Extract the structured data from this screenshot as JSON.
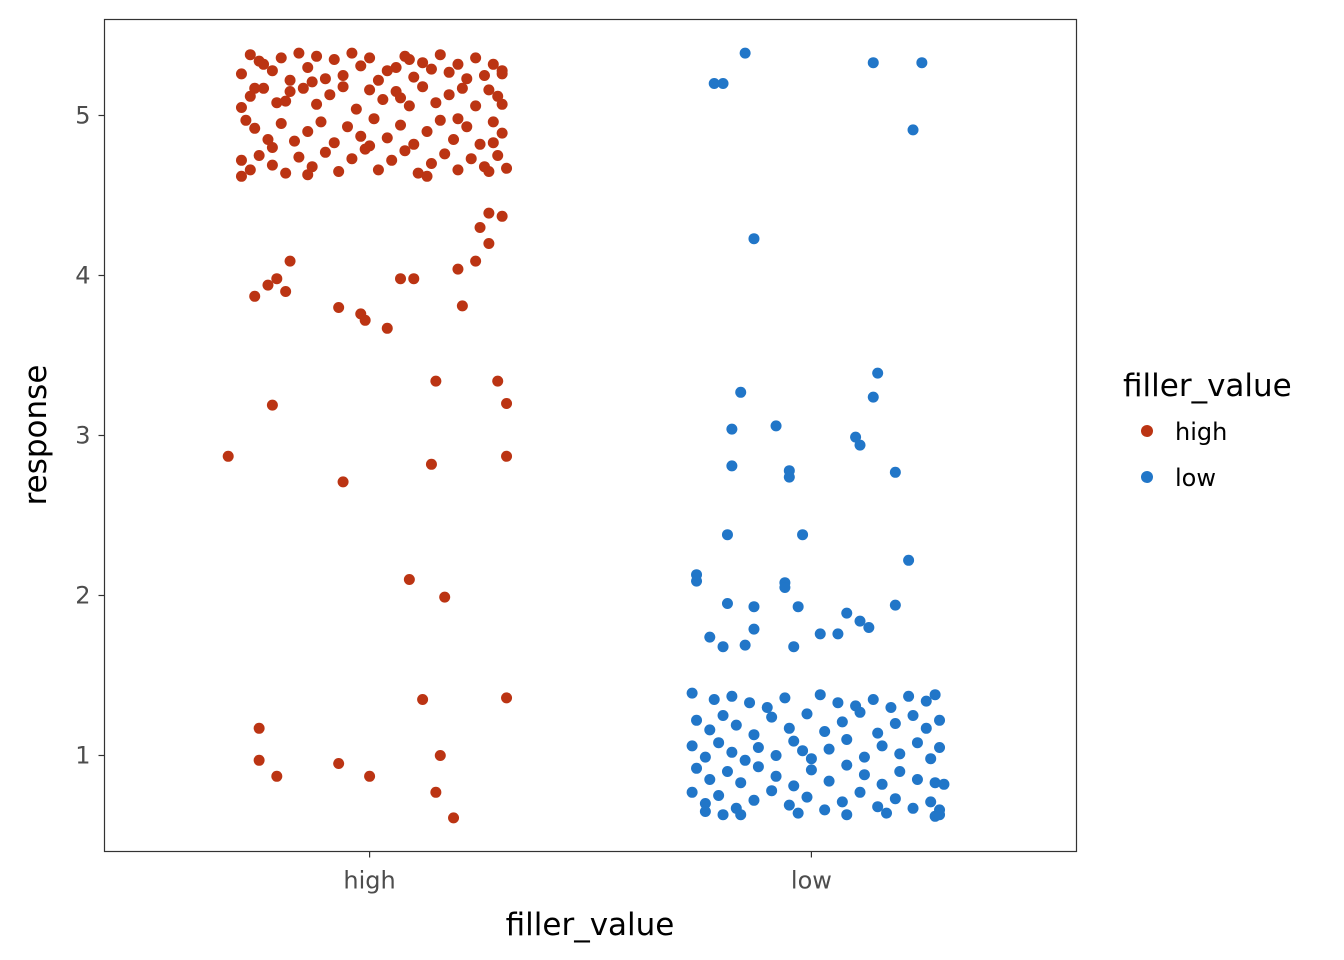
{
  "chart_data": {
    "type": "scatter",
    "xlabel": "filler_value",
    "ylabel": "response",
    "categories": [
      "high",
      "low"
    ],
    "ylim": [
      0.4,
      5.6
    ],
    "y_ticks": [
      "1",
      "2",
      "3",
      "4",
      "5"
    ],
    "grid": false,
    "legend": {
      "title": "filler_value",
      "position": "right",
      "entries": [
        "high",
        "low"
      ]
    },
    "colors": {
      "high": "#bb3413",
      "low": "#2176c8"
    },
    "series": [
      {
        "name": "high",
        "category": "high",
        "points": [
          [
            -0.29,
            5.26
          ],
          [
            -0.27,
            5.38
          ],
          [
            -0.26,
            5.17
          ],
          [
            -0.24,
            5.32
          ],
          [
            -0.22,
            5.28
          ],
          [
            -0.2,
            5.36
          ],
          [
            -0.18,
            5.22
          ],
          [
            -0.16,
            5.39
          ],
          [
            -0.14,
            5.3
          ],
          [
            -0.12,
            5.37
          ],
          [
            -0.1,
            5.23
          ],
          [
            -0.08,
            5.35
          ],
          [
            -0.06,
            5.25
          ],
          [
            -0.04,
            5.39
          ],
          [
            -0.02,
            5.31
          ],
          [
            0.0,
            5.36
          ],
          [
            0.02,
            5.22
          ],
          [
            0.04,
            5.28
          ],
          [
            0.06,
            5.3
          ],
          [
            0.08,
            5.37
          ],
          [
            0.1,
            5.24
          ],
          [
            0.12,
            5.33
          ],
          [
            0.14,
            5.29
          ],
          [
            0.16,
            5.38
          ],
          [
            0.18,
            5.27
          ],
          [
            0.2,
            5.32
          ],
          [
            0.22,
            5.23
          ],
          [
            0.24,
            5.36
          ],
          [
            0.26,
            5.25
          ],
          [
            0.28,
            5.32
          ],
          [
            0.3,
            5.28
          ],
          [
            0.3,
            5.26
          ],
          [
            -0.25,
            5.34
          ],
          [
            -0.13,
            5.21
          ],
          [
            0.09,
            5.35
          ],
          [
            -0.29,
            5.05
          ],
          [
            -0.27,
            5.12
          ],
          [
            -0.24,
            5.17
          ],
          [
            -0.21,
            5.08
          ],
          [
            -0.18,
            5.15
          ],
          [
            -0.15,
            5.17
          ],
          [
            -0.12,
            5.07
          ],
          [
            -0.09,
            5.13
          ],
          [
            -0.06,
            5.18
          ],
          [
            -0.03,
            5.04
          ],
          [
            0.0,
            5.16
          ],
          [
            0.03,
            5.1
          ],
          [
            0.06,
            5.15
          ],
          [
            0.09,
            5.06
          ],
          [
            0.12,
            5.18
          ],
          [
            0.15,
            5.08
          ],
          [
            0.18,
            5.13
          ],
          [
            0.21,
            5.17
          ],
          [
            0.24,
            5.06
          ],
          [
            0.27,
            5.16
          ],
          [
            0.3,
            5.07
          ],
          [
            0.29,
            5.12
          ],
          [
            -0.19,
            5.09
          ],
          [
            0.07,
            5.11
          ],
          [
            -0.28,
            4.97
          ],
          [
            -0.26,
            4.92
          ],
          [
            -0.23,
            4.85
          ],
          [
            -0.2,
            4.95
          ],
          [
            -0.17,
            4.84
          ],
          [
            -0.14,
            4.9
          ],
          [
            -0.11,
            4.96
          ],
          [
            -0.08,
            4.83
          ],
          [
            -0.05,
            4.93
          ],
          [
            -0.02,
            4.87
          ],
          [
            0.01,
            4.98
          ],
          [
            0.04,
            4.86
          ],
          [
            0.07,
            4.94
          ],
          [
            0.1,
            4.82
          ],
          [
            0.13,
            4.9
          ],
          [
            0.16,
            4.97
          ],
          [
            0.19,
            4.85
          ],
          [
            0.22,
            4.93
          ],
          [
            0.25,
            4.82
          ],
          [
            0.28,
            4.96
          ],
          [
            0.3,
            4.89
          ],
          [
            0.28,
            4.83
          ],
          [
            -0.22,
            4.8
          ],
          [
            0.0,
            4.81
          ],
          [
            0.2,
            4.98
          ],
          [
            -0.29,
            4.72
          ],
          [
            -0.27,
            4.66
          ],
          [
            -0.25,
            4.75
          ],
          [
            -0.22,
            4.69
          ],
          [
            -0.19,
            4.64
          ],
          [
            -0.16,
            4.74
          ],
          [
            -0.13,
            4.68
          ],
          [
            -0.1,
            4.77
          ],
          [
            -0.07,
            4.65
          ],
          [
            -0.04,
            4.73
          ],
          [
            -0.01,
            4.79
          ],
          [
            0.02,
            4.66
          ],
          [
            0.05,
            4.72
          ],
          [
            0.08,
            4.78
          ],
          [
            0.11,
            4.64
          ],
          [
            0.14,
            4.7
          ],
          [
            0.17,
            4.76
          ],
          [
            0.2,
            4.66
          ],
          [
            0.23,
            4.73
          ],
          [
            0.26,
            4.68
          ],
          [
            0.29,
            4.75
          ],
          [
            0.31,
            4.67
          ],
          [
            -0.29,
            4.62
          ],
          [
            -0.14,
            4.63
          ],
          [
            0.13,
            4.62
          ],
          [
            0.27,
            4.65
          ],
          [
            0.27,
            4.39
          ],
          [
            0.3,
            4.37
          ],
          [
            0.25,
            4.3
          ],
          [
            0.27,
            4.2
          ],
          [
            0.24,
            4.09
          ],
          [
            0.2,
            4.04
          ],
          [
            -0.18,
            4.09
          ],
          [
            -0.21,
            3.98
          ],
          [
            -0.23,
            3.94
          ],
          [
            -0.19,
            3.9
          ],
          [
            -0.26,
            3.87
          ],
          [
            0.07,
            3.98
          ],
          [
            0.1,
            3.98
          ],
          [
            -0.07,
            3.8
          ],
          [
            -0.02,
            3.76
          ],
          [
            -0.01,
            3.72
          ],
          [
            0.04,
            3.67
          ],
          [
            0.21,
            3.81
          ],
          [
            0.15,
            3.34
          ],
          [
            0.29,
            3.34
          ],
          [
            0.31,
            3.2
          ],
          [
            -0.22,
            3.19
          ],
          [
            -0.32,
            2.87
          ],
          [
            0.31,
            2.87
          ],
          [
            0.14,
            2.82
          ],
          [
            -0.06,
            2.71
          ],
          [
            0.09,
            2.1
          ],
          [
            0.17,
            1.99
          ],
          [
            0.12,
            1.35
          ],
          [
            0.31,
            1.36
          ],
          [
            -0.25,
            1.17
          ],
          [
            0.16,
            1.0
          ],
          [
            -0.25,
            0.97
          ],
          [
            -0.07,
            0.95
          ],
          [
            -0.21,
            0.87
          ],
          [
            0.0,
            0.87
          ],
          [
            0.15,
            0.77
          ],
          [
            0.19,
            0.61
          ]
        ]
      },
      {
        "name": "low",
        "category": "low",
        "points": [
          [
            -0.15,
            5.39
          ],
          [
            0.14,
            5.33
          ],
          [
            0.25,
            5.33
          ],
          [
            -0.2,
            5.2
          ],
          [
            -0.22,
            5.2
          ],
          [
            0.23,
            4.91
          ],
          [
            -0.13,
            4.23
          ],
          [
            0.15,
            3.39
          ],
          [
            -0.16,
            3.27
          ],
          [
            0.14,
            3.24
          ],
          [
            -0.08,
            3.06
          ],
          [
            -0.18,
            3.04
          ],
          [
            0.1,
            2.99
          ],
          [
            0.11,
            2.94
          ],
          [
            -0.18,
            2.81
          ],
          [
            -0.05,
            2.78
          ],
          [
            0.19,
            2.77
          ],
          [
            -0.05,
            2.74
          ],
          [
            -0.19,
            2.38
          ],
          [
            -0.02,
            2.38
          ],
          [
            0.22,
            2.22
          ],
          [
            -0.26,
            2.13
          ],
          [
            -0.26,
            2.09
          ],
          [
            -0.06,
            2.08
          ],
          [
            -0.06,
            2.05
          ],
          [
            -0.19,
            1.95
          ],
          [
            -0.13,
            1.93
          ],
          [
            -0.03,
            1.93
          ],
          [
            0.19,
            1.94
          ],
          [
            0.08,
            1.89
          ],
          [
            0.11,
            1.84
          ],
          [
            -0.13,
            1.79
          ],
          [
            0.13,
            1.8
          ],
          [
            0.02,
            1.76
          ],
          [
            0.06,
            1.76
          ],
          [
            -0.23,
            1.74
          ],
          [
            -0.2,
            1.68
          ],
          [
            -0.15,
            1.69
          ],
          [
            -0.04,
            1.68
          ],
          [
            -0.27,
            1.39
          ],
          [
            -0.22,
            1.35
          ],
          [
            -0.18,
            1.37
          ],
          [
            -0.14,
            1.33
          ],
          [
            -0.1,
            1.3
          ],
          [
            -0.06,
            1.36
          ],
          [
            0.02,
            1.38
          ],
          [
            0.06,
            1.33
          ],
          [
            0.1,
            1.31
          ],
          [
            0.14,
            1.35
          ],
          [
            0.18,
            1.3
          ],
          [
            0.22,
            1.37
          ],
          [
            0.26,
            1.34
          ],
          [
            0.28,
            1.38
          ],
          [
            -0.26,
            1.22
          ],
          [
            -0.23,
            1.16
          ],
          [
            -0.2,
            1.25
          ],
          [
            -0.17,
            1.19
          ],
          [
            -0.13,
            1.13
          ],
          [
            -0.09,
            1.24
          ],
          [
            -0.05,
            1.17
          ],
          [
            -0.01,
            1.26
          ],
          [
            0.03,
            1.15
          ],
          [
            0.07,
            1.21
          ],
          [
            0.11,
            1.27
          ],
          [
            0.15,
            1.14
          ],
          [
            0.19,
            1.2
          ],
          [
            0.23,
            1.25
          ],
          [
            0.26,
            1.17
          ],
          [
            0.29,
            1.22
          ],
          [
            -0.27,
            1.06
          ],
          [
            -0.24,
            0.99
          ],
          [
            -0.21,
            1.08
          ],
          [
            -0.18,
            1.02
          ],
          [
            -0.15,
            0.97
          ],
          [
            -0.12,
            1.05
          ],
          [
            -0.08,
            1.0
          ],
          [
            -0.04,
            1.09
          ],
          [
            0.0,
            0.98
          ],
          [
            0.04,
            1.04
          ],
          [
            0.08,
            1.1
          ],
          [
            0.12,
            0.99
          ],
          [
            0.16,
            1.06
          ],
          [
            0.2,
            1.01
          ],
          [
            0.24,
            1.08
          ],
          [
            0.27,
            0.98
          ],
          [
            0.29,
            1.05
          ],
          [
            -0.02,
            1.03
          ],
          [
            -0.26,
            0.92
          ],
          [
            -0.23,
            0.85
          ],
          [
            -0.19,
            0.9
          ],
          [
            -0.16,
            0.83
          ],
          [
            -0.12,
            0.93
          ],
          [
            -0.08,
            0.87
          ],
          [
            -0.04,
            0.81
          ],
          [
            0.0,
            0.91
          ],
          [
            0.04,
            0.84
          ],
          [
            0.08,
            0.94
          ],
          [
            0.12,
            0.88
          ],
          [
            0.16,
            0.82
          ],
          [
            0.2,
            0.9
          ],
          [
            0.24,
            0.85
          ],
          [
            0.28,
            0.83
          ],
          [
            0.3,
            0.82
          ],
          [
            -0.27,
            0.77
          ],
          [
            -0.24,
            0.7
          ],
          [
            -0.21,
            0.75
          ],
          [
            -0.17,
            0.67
          ],
          [
            -0.13,
            0.72
          ],
          [
            -0.09,
            0.78
          ],
          [
            -0.05,
            0.69
          ],
          [
            -0.01,
            0.74
          ],
          [
            0.03,
            0.66
          ],
          [
            0.07,
            0.71
          ],
          [
            0.11,
            0.77
          ],
          [
            0.15,
            0.68
          ],
          [
            0.19,
            0.73
          ],
          [
            0.23,
            0.67
          ],
          [
            0.27,
            0.71
          ],
          [
            0.29,
            0.66
          ],
          [
            -0.24,
            0.65
          ],
          [
            -0.2,
            0.63
          ],
          [
            -0.16,
            0.63
          ],
          [
            -0.03,
            0.64
          ],
          [
            0.08,
            0.63
          ],
          [
            0.17,
            0.64
          ],
          [
            0.28,
            0.62
          ],
          [
            0.29,
            0.63
          ]
        ]
      }
    ]
  }
}
